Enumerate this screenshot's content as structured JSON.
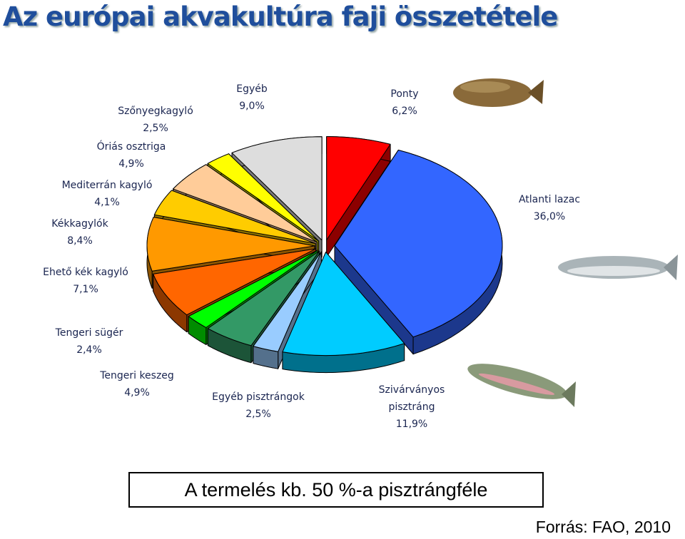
{
  "chart_data": {
    "type": "pie",
    "title": "Az európai akvakultúra faji összetétele",
    "categories": [
      "Ponty",
      "Atlanti lazac",
      "Szivárványos pisztráng",
      "Egyéb pisztrángok",
      "Tengeri keszeg",
      "Tengeri sügér",
      "Ehető kék kagyló",
      "Kékkagylók",
      "Mediterrán kagyló",
      "Óriás osztriga",
      "Szőnyegkagyló",
      "Egyéb"
    ],
    "values": [
      6.2,
      36.0,
      11.9,
      2.5,
      4.9,
      2.4,
      7.1,
      8.4,
      4.1,
      4.9,
      2.5,
      9.0
    ],
    "value_labels": [
      "6,2%",
      "36,0%",
      "11,9%",
      "2,5%",
      "4,9%",
      "2,4%",
      "7,1%",
      "8,4%",
      "4,1%",
      "4,9%",
      "2,5%",
      "9,0%"
    ],
    "colors": [
      "#ff0000",
      "#3366ff",
      "#00ccff",
      "#99ccff",
      "#339966",
      "#00ff00",
      "#ff6600",
      "#ff9900",
      "#ffcc00",
      "#ffcc99",
      "#ffff00",
      "#dddddd"
    ],
    "annotations": [
      "A termelés kb. 50 %-a pisztrángféle",
      "Forrás: FAO, 2010"
    ]
  }
}
